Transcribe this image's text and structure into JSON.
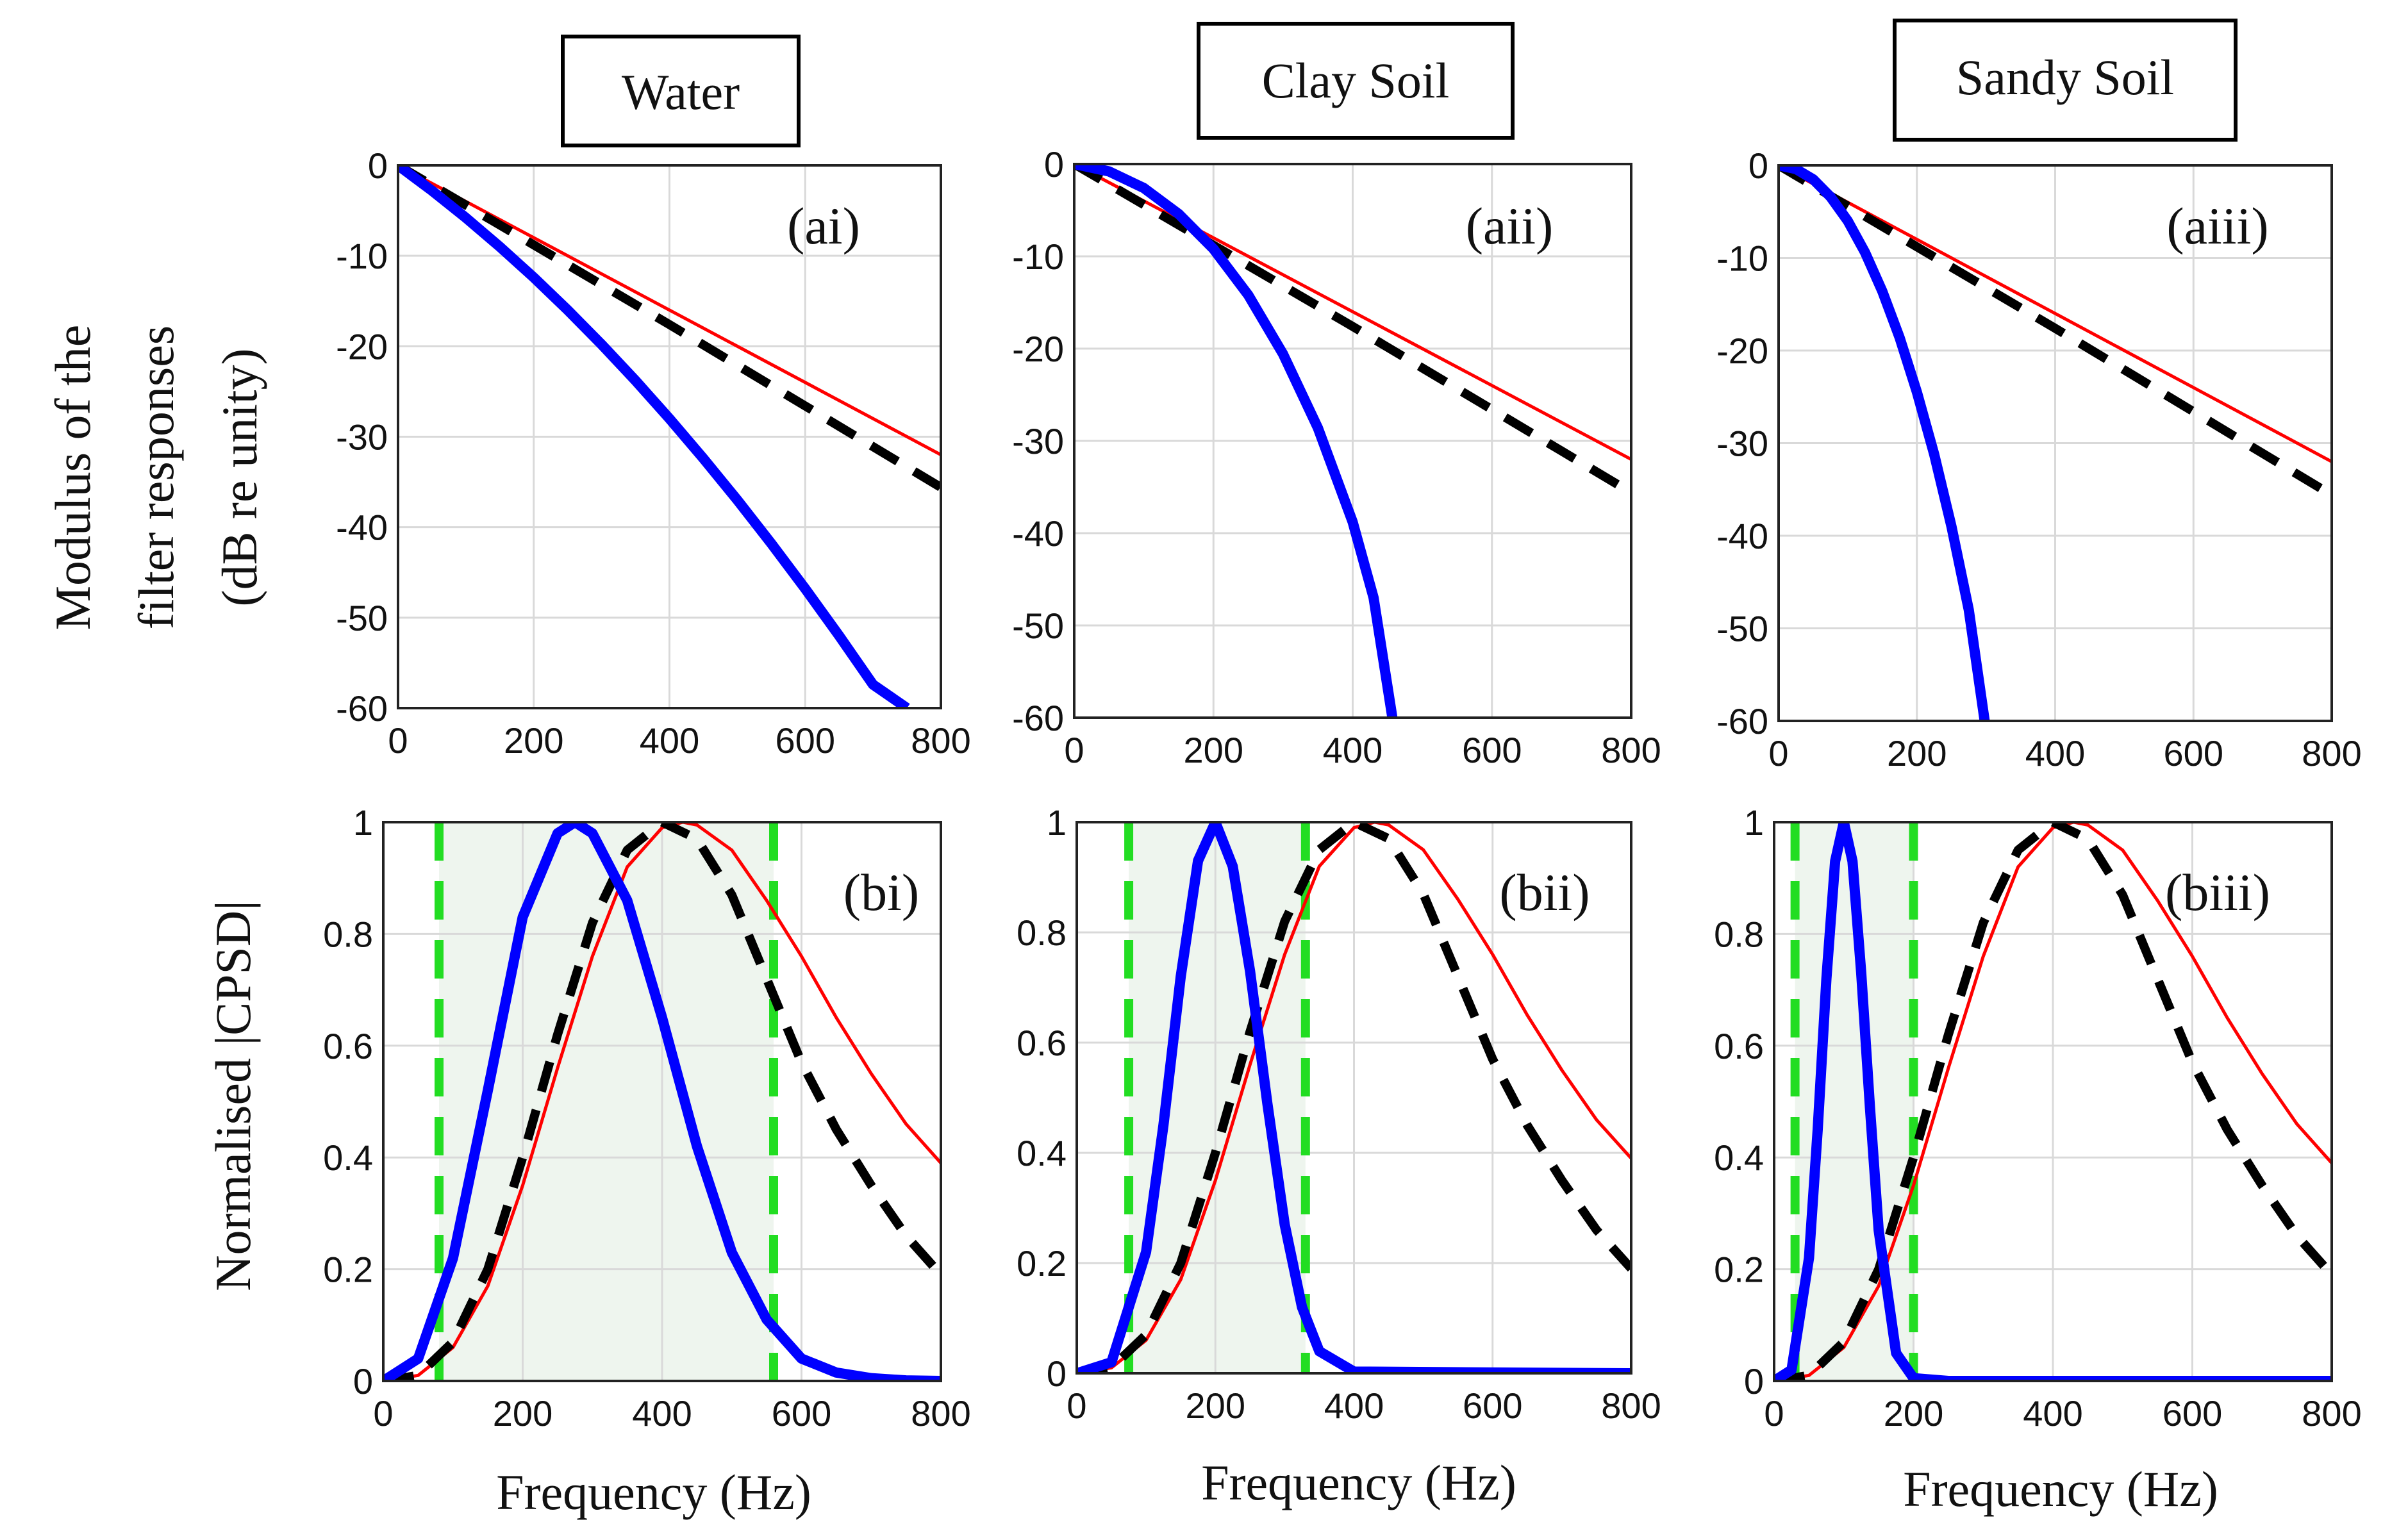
{
  "figure": {
    "column_titles": [
      "Water",
      "Clay Soil",
      "Sandy Soil"
    ],
    "top_row_ylabel": [
      "Modulus of the",
      "filter responses",
      "(dB re unity)"
    ],
    "bottom_row_ylabel": "Normalised |CPSD|",
    "xlabel": "Frequency (Hz)",
    "colors": {
      "measured": "#0000ff",
      "model_red": "#ff0000",
      "model_dashed": "#000000",
      "band_edge": "#22dd22",
      "band_fill": "#eef5ee"
    }
  },
  "chart_data": [
    {
      "id": "ai",
      "type": "line",
      "title": "(ai)",
      "xlim": [
        0,
        800
      ],
      "ylim": [
        -60,
        0
      ],
      "xticks": [
        0,
        200,
        400,
        600,
        800
      ],
      "yticks": [
        0,
        -10,
        -20,
        -30,
        -40,
        -50,
        -60
      ],
      "grid": true,
      "series": [
        {
          "style": "solid-thin",
          "color": "#ff0000",
          "x": [
            0,
            800
          ],
          "y": [
            0,
            -32
          ]
        },
        {
          "style": "dashed",
          "color": "#000000",
          "x": [
            0,
            100,
            200,
            300,
            400,
            500,
            600,
            700,
            800
          ],
          "y": [
            0,
            -4.4,
            -8.8,
            -13.2,
            -17.6,
            -22.1,
            -26.6,
            -31.1,
            -35.6
          ]
        },
        {
          "style": "solid-thick",
          "color": "#0000ff",
          "x": [
            0,
            50,
            100,
            150,
            200,
            250,
            300,
            350,
            400,
            450,
            500,
            550,
            600,
            650,
            700,
            750
          ],
          "y": [
            0,
            -2.8,
            -5.8,
            -9,
            -12.4,
            -16,
            -19.8,
            -23.8,
            -28,
            -32.4,
            -37,
            -41.8,
            -46.8,
            -52,
            -57.4,
            -60
          ]
        }
      ]
    },
    {
      "id": "aii",
      "type": "line",
      "title": "(aii)",
      "xlim": [
        0,
        800
      ],
      "ylim": [
        -60,
        0
      ],
      "xticks": [
        0,
        200,
        400,
        600,
        800
      ],
      "yticks": [
        0,
        -10,
        -20,
        -30,
        -40,
        -50,
        -60
      ],
      "grid": true,
      "series": [
        {
          "style": "solid-thin",
          "color": "#ff0000",
          "x": [
            0,
            800
          ],
          "y": [
            0,
            -32
          ]
        },
        {
          "style": "dashed",
          "color": "#000000",
          "x": [
            0,
            100,
            200,
            300,
            400,
            500,
            600,
            700,
            800
          ],
          "y": [
            0,
            -4.4,
            -8.8,
            -13.2,
            -17.6,
            -22.1,
            -26.6,
            -31.1,
            -35.6
          ]
        },
        {
          "style": "solid-thick",
          "color": "#0000ff",
          "x": [
            0,
            50,
            100,
            150,
            200,
            250,
            300,
            350,
            400,
            430,
            457
          ],
          "y": [
            0,
            -0.8,
            -2.6,
            -5.4,
            -9.2,
            -14.2,
            -20.6,
            -28.6,
            -38.8,
            -47,
            -60
          ]
        }
      ]
    },
    {
      "id": "aiii",
      "type": "line",
      "title": "(aiii)",
      "xlim": [
        0,
        800
      ],
      "ylim": [
        -60,
        0
      ],
      "xticks": [
        0,
        200,
        400,
        600,
        800
      ],
      "yticks": [
        0,
        -10,
        -20,
        -30,
        -40,
        -50,
        -60
      ],
      "grid": true,
      "series": [
        {
          "style": "solid-thin",
          "color": "#ff0000",
          "x": [
            0,
            800
          ],
          "y": [
            0,
            -32
          ]
        },
        {
          "style": "dashed",
          "color": "#000000",
          "x": [
            0,
            100,
            200,
            300,
            400,
            500,
            600,
            700,
            800
          ],
          "y": [
            0,
            -4.4,
            -8.8,
            -13.2,
            -17.6,
            -22.1,
            -26.6,
            -31.1,
            -35.6
          ]
        },
        {
          "style": "solid-thick",
          "color": "#0000ff",
          "x": [
            0,
            25,
            50,
            75,
            100,
            125,
            150,
            175,
            200,
            225,
            250,
            275,
            298
          ],
          "y": [
            0,
            -0.4,
            -1.5,
            -3.4,
            -6,
            -9.4,
            -13.6,
            -18.6,
            -24.5,
            -31.2,
            -39,
            -48,
            -60
          ]
        }
      ]
    },
    {
      "id": "bi",
      "type": "line",
      "title": "(bi)",
      "xlim": [
        0,
        800
      ],
      "ylim": [
        0,
        1
      ],
      "xticks": [
        0,
        200,
        400,
        600,
        800
      ],
      "yticks": [
        0,
        0.2,
        0.4,
        0.6,
        0.8,
        1
      ],
      "grid": true,
      "band": [
        80,
        560
      ],
      "series": [
        {
          "style": "solid-thin",
          "color": "#ff0000",
          "x": [
            0,
            50,
            100,
            150,
            200,
            250,
            300,
            350,
            400,
            430,
            450,
            500,
            550,
            600,
            650,
            700,
            750,
            800
          ],
          "y": [
            0,
            0.01,
            0.06,
            0.17,
            0.35,
            0.56,
            0.76,
            0.92,
            0.99,
            1.0,
            0.995,
            0.95,
            0.86,
            0.76,
            0.65,
            0.55,
            0.46,
            0.39
          ]
        },
        {
          "style": "dashed",
          "color": "#000000",
          "x": [
            0,
            50,
            100,
            150,
            200,
            250,
            300,
            350,
            400,
            450,
            500,
            550,
            600,
            650,
            700,
            750,
            800
          ],
          "y": [
            0,
            0.01,
            0.07,
            0.2,
            0.4,
            0.62,
            0.82,
            0.95,
            1.0,
            0.97,
            0.87,
            0.72,
            0.57,
            0.45,
            0.35,
            0.26,
            0.19
          ]
        },
        {
          "style": "solid-thick",
          "color": "#0000ff",
          "x": [
            0,
            50,
            100,
            150,
            200,
            250,
            275,
            300,
            350,
            400,
            450,
            500,
            550,
            600,
            650,
            700,
            750,
            800
          ],
          "y": [
            0,
            0.04,
            0.22,
            0.52,
            0.83,
            0.98,
            1.0,
            0.98,
            0.86,
            0.65,
            0.42,
            0.23,
            0.11,
            0.04,
            0.015,
            0.005,
            0.001,
            0
          ]
        }
      ]
    },
    {
      "id": "bii",
      "type": "line",
      "title": "(bii)",
      "xlim": [
        0,
        800
      ],
      "ylim": [
        0,
        1
      ],
      "xticks": [
        0,
        200,
        400,
        600,
        800
      ],
      "yticks": [
        0,
        0.2,
        0.4,
        0.6,
        0.8,
        1
      ],
      "grid": true,
      "band": [
        75,
        330
      ],
      "series": [
        {
          "style": "solid-thin",
          "color": "#ff0000",
          "x": [
            0,
            50,
            100,
            150,
            200,
            250,
            300,
            350,
            400,
            430,
            450,
            500,
            550,
            600,
            650,
            700,
            750,
            800
          ],
          "y": [
            0,
            0.01,
            0.06,
            0.17,
            0.35,
            0.56,
            0.76,
            0.92,
            0.99,
            1.0,
            0.995,
            0.95,
            0.86,
            0.76,
            0.65,
            0.55,
            0.46,
            0.39
          ]
        },
        {
          "style": "dashed",
          "color": "#000000",
          "x": [
            0,
            50,
            100,
            150,
            200,
            250,
            300,
            350,
            400,
            450,
            500,
            550,
            600,
            650,
            700,
            750,
            800
          ],
          "y": [
            0,
            0.01,
            0.07,
            0.2,
            0.4,
            0.62,
            0.82,
            0.95,
            1.0,
            0.97,
            0.87,
            0.72,
            0.57,
            0.45,
            0.35,
            0.26,
            0.19
          ]
        },
        {
          "style": "solid-thick",
          "color": "#0000ff",
          "x": [
            0,
            50,
            100,
            125,
            150,
            175,
            200,
            225,
            250,
            275,
            300,
            325,
            350,
            400,
            800
          ],
          "y": [
            0,
            0.02,
            0.22,
            0.45,
            0.72,
            0.93,
            1.0,
            0.92,
            0.73,
            0.49,
            0.27,
            0.12,
            0.04,
            0.003,
            0
          ]
        }
      ]
    },
    {
      "id": "biii",
      "type": "line",
      "title": "(biii)",
      "xlim": [
        0,
        800
      ],
      "ylim": [
        0,
        1
      ],
      "xticks": [
        0,
        200,
        400,
        600,
        800
      ],
      "yticks": [
        0,
        0.2,
        0.4,
        0.6,
        0.8,
        1
      ],
      "grid": true,
      "band": [
        30,
        200
      ],
      "series": [
        {
          "style": "solid-thin",
          "color": "#ff0000",
          "x": [
            0,
            50,
            100,
            150,
            200,
            250,
            300,
            350,
            400,
            430,
            450,
            500,
            550,
            600,
            650,
            700,
            750,
            800
          ],
          "y": [
            0,
            0.01,
            0.06,
            0.17,
            0.35,
            0.56,
            0.76,
            0.92,
            0.99,
            1.0,
            0.995,
            0.95,
            0.86,
            0.76,
            0.65,
            0.55,
            0.46,
            0.39
          ]
        },
        {
          "style": "dashed",
          "color": "#000000",
          "x": [
            0,
            50,
            100,
            150,
            200,
            250,
            300,
            350,
            400,
            450,
            500,
            550,
            600,
            650,
            700,
            750,
            800
          ],
          "y": [
            0,
            0.01,
            0.07,
            0.2,
            0.4,
            0.62,
            0.82,
            0.95,
            1.0,
            0.97,
            0.87,
            0.72,
            0.57,
            0.45,
            0.35,
            0.26,
            0.19
          ]
        },
        {
          "style": "solid-thick",
          "color": "#0000ff",
          "x": [
            0,
            25,
            50,
            62.5,
            75,
            87.5,
            100,
            112.5,
            125,
            137.5,
            150,
            175,
            200,
            250,
            800
          ],
          "y": [
            0,
            0.02,
            0.22,
            0.45,
            0.72,
            0.93,
            1.0,
            0.93,
            0.73,
            0.49,
            0.27,
            0.05,
            0.005,
            0,
            0
          ]
        }
      ]
    }
  ]
}
